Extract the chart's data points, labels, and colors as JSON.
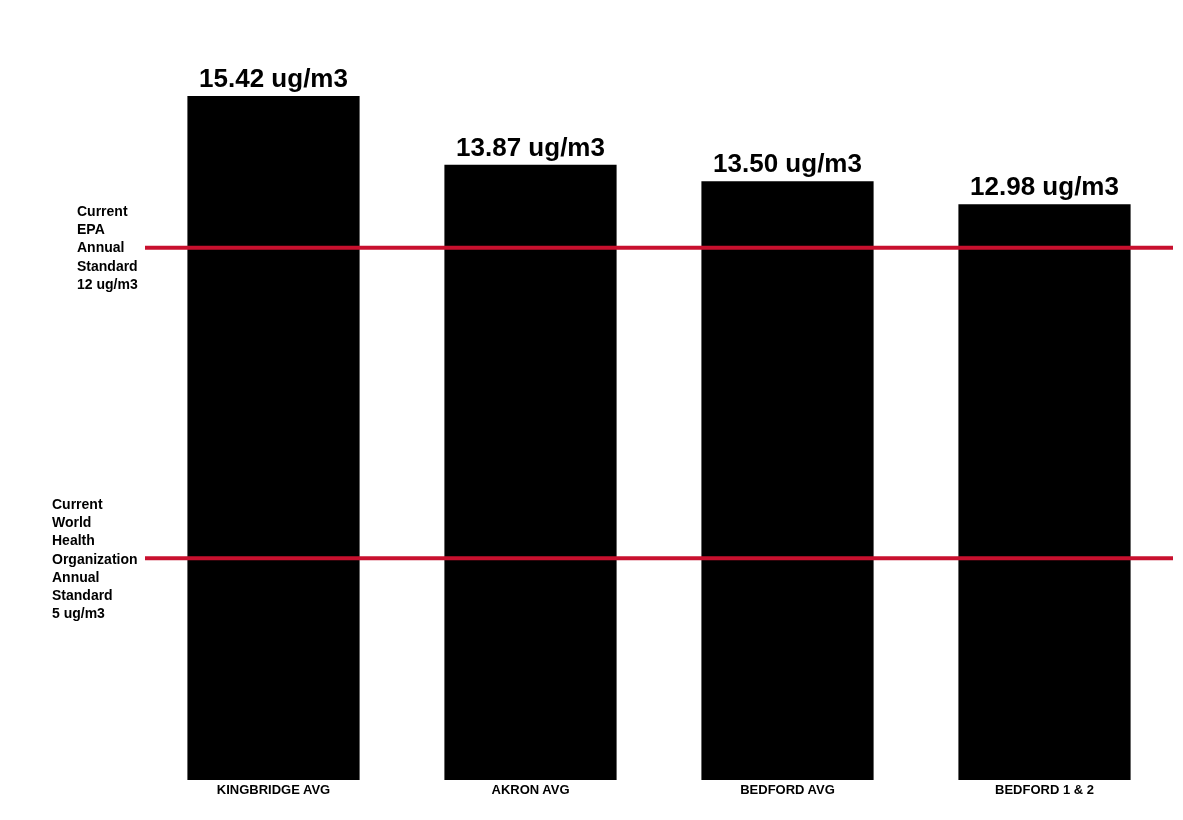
{
  "chart_data": {
    "type": "bar",
    "categories": [
      "KINGBRIDGE AVG",
      "AKRON AVG",
      "BEDFORD AVG",
      "BEDFORD 1 & 2"
    ],
    "values": [
      15.42,
      13.87,
      13.5,
      12.98
    ],
    "color": "#000000",
    "value_labels": [
      "15.42 ug/m3",
      "13.87 ug/m3",
      "13.50 ug/m3",
      "12.98 ug/m3"
    ],
    "ref_lines": [
      {
        "axis": "y",
        "value": 12,
        "label": "Current EPA Annual Standard 12 ug/m3",
        "color": "#c8102e"
      },
      {
        "axis": "y",
        "value": 5,
        "label": "Current World Health Organization Annual Standard 5 ug/m3",
        "color": "#c8102e"
      }
    ],
    "legend": false,
    "tick_labels": "x"
  }
}
